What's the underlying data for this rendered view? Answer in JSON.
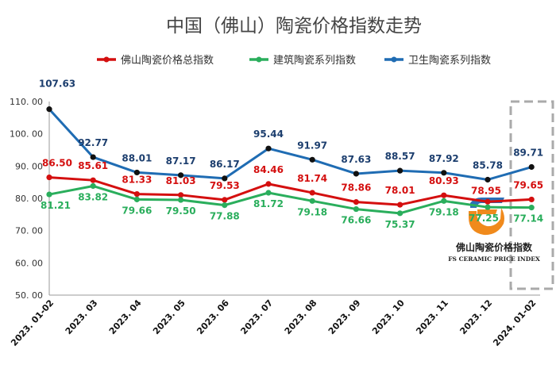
{
  "title": "中国（佛山）陶瓷价格指数走势",
  "logo": {
    "name": "佛山陶瓷价格指数",
    "subtitle": "FS CERAMIC PRICE INDEX",
    "colors": [
      "#2a6fb8",
      "#f08a1c"
    ]
  },
  "chart_data": {
    "type": "line",
    "title": "中国（佛山）陶瓷价格指数走势",
    "categories": [
      "2023. 01-02",
      "2023. 03",
      "2023. 04",
      "2023. 05",
      "2023. 06",
      "2023. 07",
      "2023. 08",
      "2023. 09",
      "2023. 10",
      "2023. 11",
      "2023. 12",
      "2024. 01-02"
    ],
    "y_ticks": [
      "50. 00",
      "60. 00",
      "70. 00",
      "80. 00",
      "90. 00",
      "100. 00",
      "110. 00"
    ],
    "ylim": [
      50,
      110
    ],
    "grid": false,
    "legend_position": "top",
    "highlight_category": "2024. 01-02",
    "series": [
      {
        "name": "佛山陶瓷价格总指数",
        "color": "#d40f0f",
        "values": [
          86.5,
          85.61,
          81.33,
          81.03,
          79.53,
          84.46,
          81.74,
          78.86,
          78.01,
          80.93,
          78.95,
          79.65
        ],
        "labels": [
          "86.50",
          "85.61",
          "81.33",
          "81.03",
          "79.53",
          "84.46",
          "81.74",
          "78.86",
          "78.01",
          "80.93",
          "78.95",
          "79.65"
        ]
      },
      {
        "name": "建筑陶瓷系列指数",
        "color": "#2aae5c",
        "values": [
          81.21,
          83.82,
          79.66,
          79.5,
          77.88,
          81.72,
          79.18,
          76.66,
          75.37,
          79.18,
          77.25,
          77.14
        ],
        "labels": [
          "81.21",
          "83.82",
          "79.66",
          "79.50",
          "77.88",
          "81.72",
          "79.18",
          "76.66",
          "75.37",
          "79.18",
          "77.25",
          "77.14"
        ]
      },
      {
        "name": "卫生陶瓷系列指数",
        "color": "#1f6cb3",
        "values": [
          107.63,
          92.77,
          88.01,
          87.17,
          86.17,
          95.44,
          91.97,
          87.63,
          88.57,
          87.92,
          85.78,
          89.71
        ],
        "labels": [
          "107.63",
          "92.77",
          "88.01",
          "87.17",
          "86.17",
          "95.44",
          "91.97",
          "87.63",
          "88.57",
          "87.92",
          "85.78",
          "89.71"
        ]
      }
    ]
  }
}
